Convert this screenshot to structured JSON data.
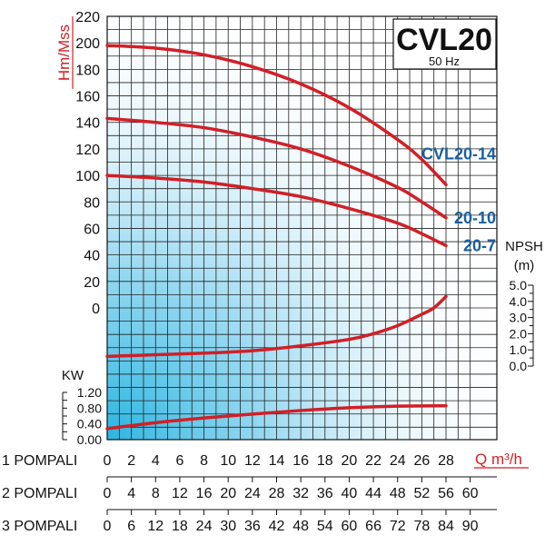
{
  "title": "CVL20",
  "subtitle": "50 Hz",
  "colors": {
    "curve": "#d21f26",
    "series_label": "#1a5f9e",
    "gradient": "#2bb5e0"
  },
  "chart_data": [
    {
      "type": "line",
      "panel": "head",
      "ylabel": "Hm/Mss",
      "ylim": [
        0,
        220
      ],
      "yticks": [
        "0",
        "20",
        "40",
        "60",
        "80",
        "100",
        "120",
        "140",
        "160",
        "180",
        "200",
        "220"
      ],
      "xlabel": "Q m³/h",
      "xlim": [
        0,
        28
      ],
      "xticks": [
        "0",
        "2",
        "4",
        "6",
        "8",
        "10",
        "12",
        "14",
        "16",
        "18",
        "20",
        "22",
        "24",
        "26",
        "28"
      ],
      "grid": true,
      "series": [
        {
          "name": "CVL20-14",
          "x": [
            0,
            4,
            8,
            12,
            16,
            20,
            24,
            26,
            28
          ],
          "y": [
            198,
            196,
            191,
            182,
            169,
            151,
            127,
            112,
            93
          ]
        },
        {
          "name": "20-10",
          "x": [
            0,
            4,
            8,
            12,
            16,
            20,
            24,
            26,
            28
          ],
          "y": [
            143,
            140,
            136,
            129,
            120,
            107,
            91,
            80,
            68
          ]
        },
        {
          "name": "20-7",
          "x": [
            0,
            4,
            8,
            12,
            16,
            20,
            24,
            26,
            28
          ],
          "y": [
            100,
            98,
            95,
            90,
            84,
            75,
            64,
            56,
            47
          ]
        }
      ]
    },
    {
      "type": "line",
      "panel": "npsh",
      "ylabel": "NPSH (m)",
      "ylim": [
        0,
        5
      ],
      "yticks": [
        "0.0",
        "1.0",
        "2.0",
        "3.0",
        "4.0",
        "5.0"
      ],
      "series": [
        {
          "name": "",
          "x": [
            0,
            4,
            8,
            12,
            16,
            20,
            22,
            24,
            26,
            27,
            28
          ],
          "y": [
            0.6,
            0.7,
            0.8,
            0.95,
            1.25,
            1.65,
            2.0,
            2.5,
            3.2,
            3.6,
            4.3
          ]
        }
      ]
    },
    {
      "type": "line",
      "panel": "power",
      "ylabel": "KW",
      "ylim": [
        0,
        1.2
      ],
      "yticks": [
        "0.00",
        "0.40",
        "0.80",
        "1.20"
      ],
      "series": [
        {
          "name": "",
          "x": [
            0,
            4,
            8,
            12,
            16,
            20,
            24,
            28
          ],
          "y": [
            0.28,
            0.43,
            0.55,
            0.65,
            0.74,
            0.81,
            0.85,
            0.86
          ]
        }
      ]
    }
  ],
  "axis_rows": [
    {
      "label": "1 POMPALI",
      "ticks": [
        "0",
        "2",
        "4",
        "6",
        "8",
        "10",
        "12",
        "14",
        "16",
        "18",
        "20",
        "22",
        "24",
        "26",
        "28"
      ]
    },
    {
      "label": "2 POMPALI",
      "ticks": [
        "0",
        "4",
        "8",
        "12",
        "16",
        "20",
        "24",
        "28",
        "32",
        "36",
        "40",
        "44",
        "48",
        "52",
        "56",
        "60"
      ]
    },
    {
      "label": "3 POMPALI",
      "ticks": [
        "0",
        "6",
        "12",
        "18",
        "24",
        "30",
        "36",
        "42",
        "48",
        "54",
        "60",
        "66",
        "72",
        "78",
        "84",
        "90"
      ]
    }
  ]
}
